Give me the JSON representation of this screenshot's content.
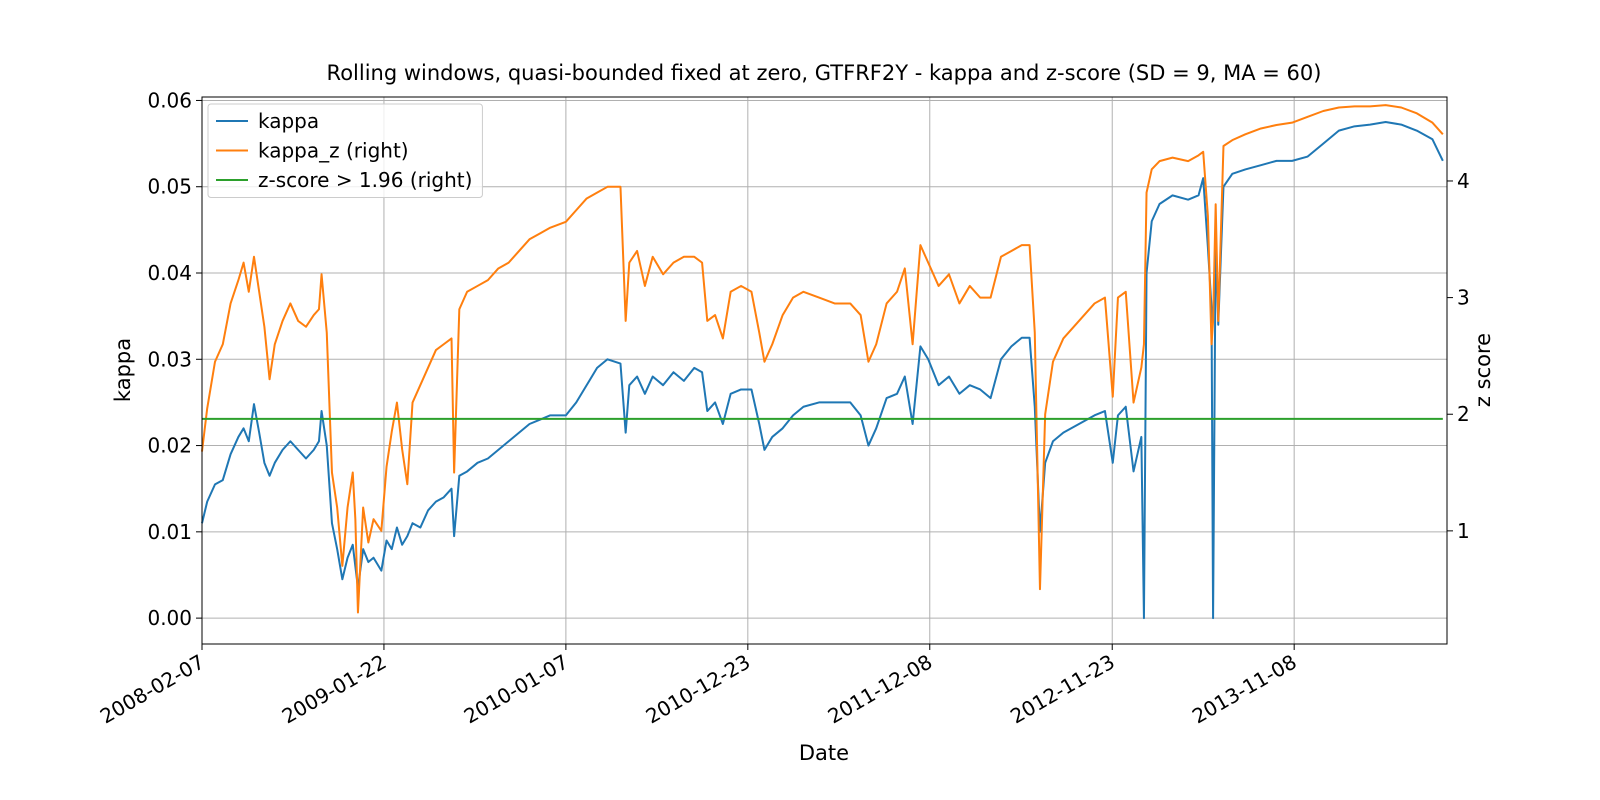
{
  "chart_data": {
    "type": "line",
    "title": "Rolling windows, quasi-bounded fixed at zero, GTFRF2Y - kappa and z-score (SD = 9, MA = 60)",
    "xlabel": "Date",
    "ylabel": "kappa",
    "y2label": "z score",
    "grid": true,
    "legend": "upper left",
    "xlim": [
      "2008-02-07",
      "2014-08-29"
    ],
    "xticks": [
      "2008-02-07",
      "2009-01-22",
      "2010-01-07",
      "2010-12-23",
      "2011-12-08",
      "2012-11-23",
      "2013-11-08"
    ],
    "ylim": [
      -0.003,
      0.0604
    ],
    "yticks": [
      {
        "value": 0,
        "label": "0.00"
      },
      0.01,
      0.02,
      0.03,
      0.04,
      0.05,
      0.06
    ],
    "y2lim": [
      0.03,
      4.72
    ],
    "y2ticks": [
      1,
      2,
      3,
      4
    ],
    "x": [
      "2008-02-07",
      "2008-02-17",
      "2008-03-03",
      "2008-03-18",
      "2008-04-02",
      "2008-04-17",
      "2008-04-27",
      "2008-05-07",
      "2008-05-17",
      "2008-05-27",
      "2008-06-06",
      "2008-06-16",
      "2008-06-26",
      "2008-07-11",
      "2008-07-26",
      "2008-08-10",
      "2008-08-25",
      "2008-09-09",
      "2008-09-19",
      "2008-09-24",
      "2008-10-04",
      "2008-10-14",
      "2008-10-24",
      "2008-11-03",
      "2008-11-13",
      "2008-11-23",
      "2008-11-28",
      "2008-12-03",
      "2008-12-13",
      "2008-12-23",
      "2009-01-02",
      "2009-01-17",
      "2009-01-27",
      "2009-02-06",
      "2009-02-16",
      "2009-02-26",
      "2009-03-08",
      "2009-03-18",
      "2009-04-02",
      "2009-04-17",
      "2009-05-02",
      "2009-05-17",
      "2009-06-01",
      "2009-06-06",
      "2009-06-16",
      "2009-07-01",
      "2009-07-21",
      "2009-08-10",
      "2009-08-30",
      "2009-09-19",
      "2009-10-09",
      "2009-10-29",
      "2009-11-18",
      "2009-12-08",
      "2010-01-07",
      "2010-01-27",
      "2010-02-16",
      "2010-03-08",
      "2010-03-28",
      "2010-04-22",
      "2010-05-02",
      "2010-05-09",
      "2010-05-24",
      "2010-06-08",
      "2010-06-23",
      "2010-07-13",
      "2010-08-02",
      "2010-08-22",
      "2010-09-11",
      "2010-09-26",
      "2010-10-06",
      "2010-10-21",
      "2010-11-05",
      "2010-11-20",
      "2010-12-10",
      "2010-12-30",
      "2011-01-14",
      "2011-01-24",
      "2011-02-08",
      "2011-02-28",
      "2011-03-20",
      "2011-04-09",
      "2011-05-09",
      "2011-06-08",
      "2011-07-08",
      "2011-07-28",
      "2011-08-12",
      "2011-08-27",
      "2011-09-16",
      "2011-10-06",
      "2011-10-21",
      "2011-11-05",
      "2011-11-20",
      "2011-12-05",
      "2011-12-25",
      "2012-01-14",
      "2012-02-03",
      "2012-02-23",
      "2012-03-14",
      "2012-04-03",
      "2012-04-23",
      "2012-05-13",
      "2012-06-02",
      "2012-06-17",
      "2012-06-27",
      "2012-07-07",
      "2012-07-17",
      "2012-08-01",
      "2012-08-21",
      "2012-09-20",
      "2012-10-20",
      "2012-11-09",
      "2012-11-24",
      "2012-12-04",
      "2012-12-19",
      "2013-01-03",
      "2013-01-18",
      "2013-01-23",
      "2013-01-28",
      "2013-02-07",
      "2013-02-22",
      "2013-03-19",
      "2013-04-18",
      "2013-05-08",
      "2013-05-17",
      "2013-05-26",
      "2013-06-02",
      "2013-06-05",
      "2013-06-10",
      "2013-06-15",
      "2013-06-25",
      "2013-07-12",
      "2013-08-06",
      "2013-09-05",
      "2013-10-05",
      "2013-11-04",
      "2013-12-04",
      "2014-01-03",
      "2014-02-02",
      "2014-03-04",
      "2014-04-03",
      "2014-05-03",
      "2014-06-02",
      "2014-07-02",
      "2014-08-01",
      "2014-08-21"
    ],
    "series": [
      {
        "name": "kappa",
        "color": "#1f77b4",
        "axis": "y",
        "values": [
          0.011,
          0.0135,
          0.0155,
          0.016,
          0.019,
          0.021,
          0.022,
          0.0205,
          0.0248,
          0.0215,
          0.018,
          0.0165,
          0.018,
          0.0195,
          0.0205,
          0.0195,
          0.0185,
          0.0195,
          0.0205,
          0.024,
          0.02,
          0.011,
          0.008,
          0.0045,
          0.007,
          0.0085,
          0.006,
          0.0035,
          0.008,
          0.0065,
          0.007,
          0.0055,
          0.009,
          0.008,
          0.0105,
          0.0085,
          0.0095,
          0.011,
          0.0105,
          0.0125,
          0.0135,
          0.014,
          0.015,
          0.0095,
          0.0165,
          0.017,
          0.018,
          0.0185,
          0.0195,
          0.0205,
          0.0215,
          0.0225,
          0.023,
          0.0235,
          0.0235,
          0.025,
          0.027,
          0.029,
          0.03,
          0.0295,
          0.0215,
          0.027,
          0.028,
          0.026,
          0.028,
          0.027,
          0.0285,
          0.0275,
          0.029,
          0.0285,
          0.024,
          0.025,
          0.0225,
          0.026,
          0.0265,
          0.0265,
          0.0225,
          0.0195,
          0.021,
          0.022,
          0.0235,
          0.0245,
          0.025,
          0.025,
          0.025,
          0.0235,
          0.02,
          0.022,
          0.0255,
          0.026,
          0.028,
          0.0225,
          0.0315,
          0.03,
          0.027,
          0.028,
          0.026,
          0.027,
          0.0265,
          0.0255,
          0.03,
          0.0315,
          0.0325,
          0.0325,
          0.0245,
          0.01,
          0.018,
          0.0205,
          0.0215,
          0.0225,
          0.0235,
          0.024,
          0.018,
          0.0235,
          0.0245,
          0.017,
          0.021,
          0,
          0.04,
          0.046,
          0.048,
          0.049,
          0.0485,
          0.049,
          0.051,
          0.043,
          0.036,
          0,
          0.044,
          0.034,
          0.05,
          0.0515,
          0.052,
          0.0525,
          0.053,
          0.053,
          0.0535,
          0.055,
          0.0565,
          0.057,
          0.0572,
          0.0575,
          0.0572,
          0.0565,
          0.0555,
          0.053
        ]
      },
      {
        "name": "kappa_z (right)",
        "color": "#ff7f0e",
        "axis": "y2",
        "values": [
          1.68,
          2.05,
          2.45,
          2.6,
          2.95,
          3.15,
          3.3,
          3.05,
          3.35,
          3.05,
          2.75,
          2.3,
          2.6,
          2.8,
          2.95,
          2.8,
          2.75,
          2.85,
          2.9,
          3.2,
          2.7,
          1.5,
          1.2,
          0.7,
          1.2,
          1.5,
          1.1,
          0.3,
          1.2,
          0.9,
          1.1,
          1.0,
          1.55,
          1.85,
          2.1,
          1.7,
          1.4,
          2.1,
          2.25,
          2.4,
          2.55,
          2.6,
          2.65,
          1.5,
          2.9,
          3.05,
          3.1,
          3.15,
          3.25,
          3.3,
          3.4,
          3.5,
          3.55,
          3.6,
          3.65,
          3.75,
          3.85,
          3.9,
          3.95,
          3.95,
          2.8,
          3.3,
          3.4,
          3.1,
          3.35,
          3.2,
          3.3,
          3.35,
          3.35,
          3.3,
          2.8,
          2.85,
          2.65,
          3.05,
          3.1,
          3.05,
          2.7,
          2.45,
          2.6,
          2.85,
          3.0,
          3.05,
          3.0,
          2.95,
          2.95,
          2.85,
          2.45,
          2.6,
          2.95,
          3.05,
          3.25,
          2.6,
          3.45,
          3.3,
          3.1,
          3.2,
          2.95,
          3.1,
          3.0,
          3.0,
          3.35,
          3.4,
          3.45,
          3.45,
          2.7,
          0.5,
          2.0,
          2.45,
          2.65,
          2.8,
          2.95,
          3.0,
          2.15,
          3.0,
          3.05,
          2.1,
          2.4,
          2.6,
          3.9,
          4.1,
          4.17,
          4.2,
          4.17,
          4.22,
          4.25,
          3.7,
          2.6,
          2.8,
          3.8,
          2.8,
          4.3,
          4.35,
          4.4,
          4.45,
          4.48,
          4.5,
          4.55,
          4.6,
          4.63,
          4.64,
          4.64,
          4.65,
          4.63,
          4.58,
          4.5,
          4.4
        ]
      },
      {
        "name": "z-score > 1.96 (right)",
        "color": "#2ca02c",
        "axis": "y2",
        "x": [
          "2008-02-07",
          "2014-08-21"
        ],
        "values": [
          1.96,
          1.96
        ]
      }
    ]
  }
}
